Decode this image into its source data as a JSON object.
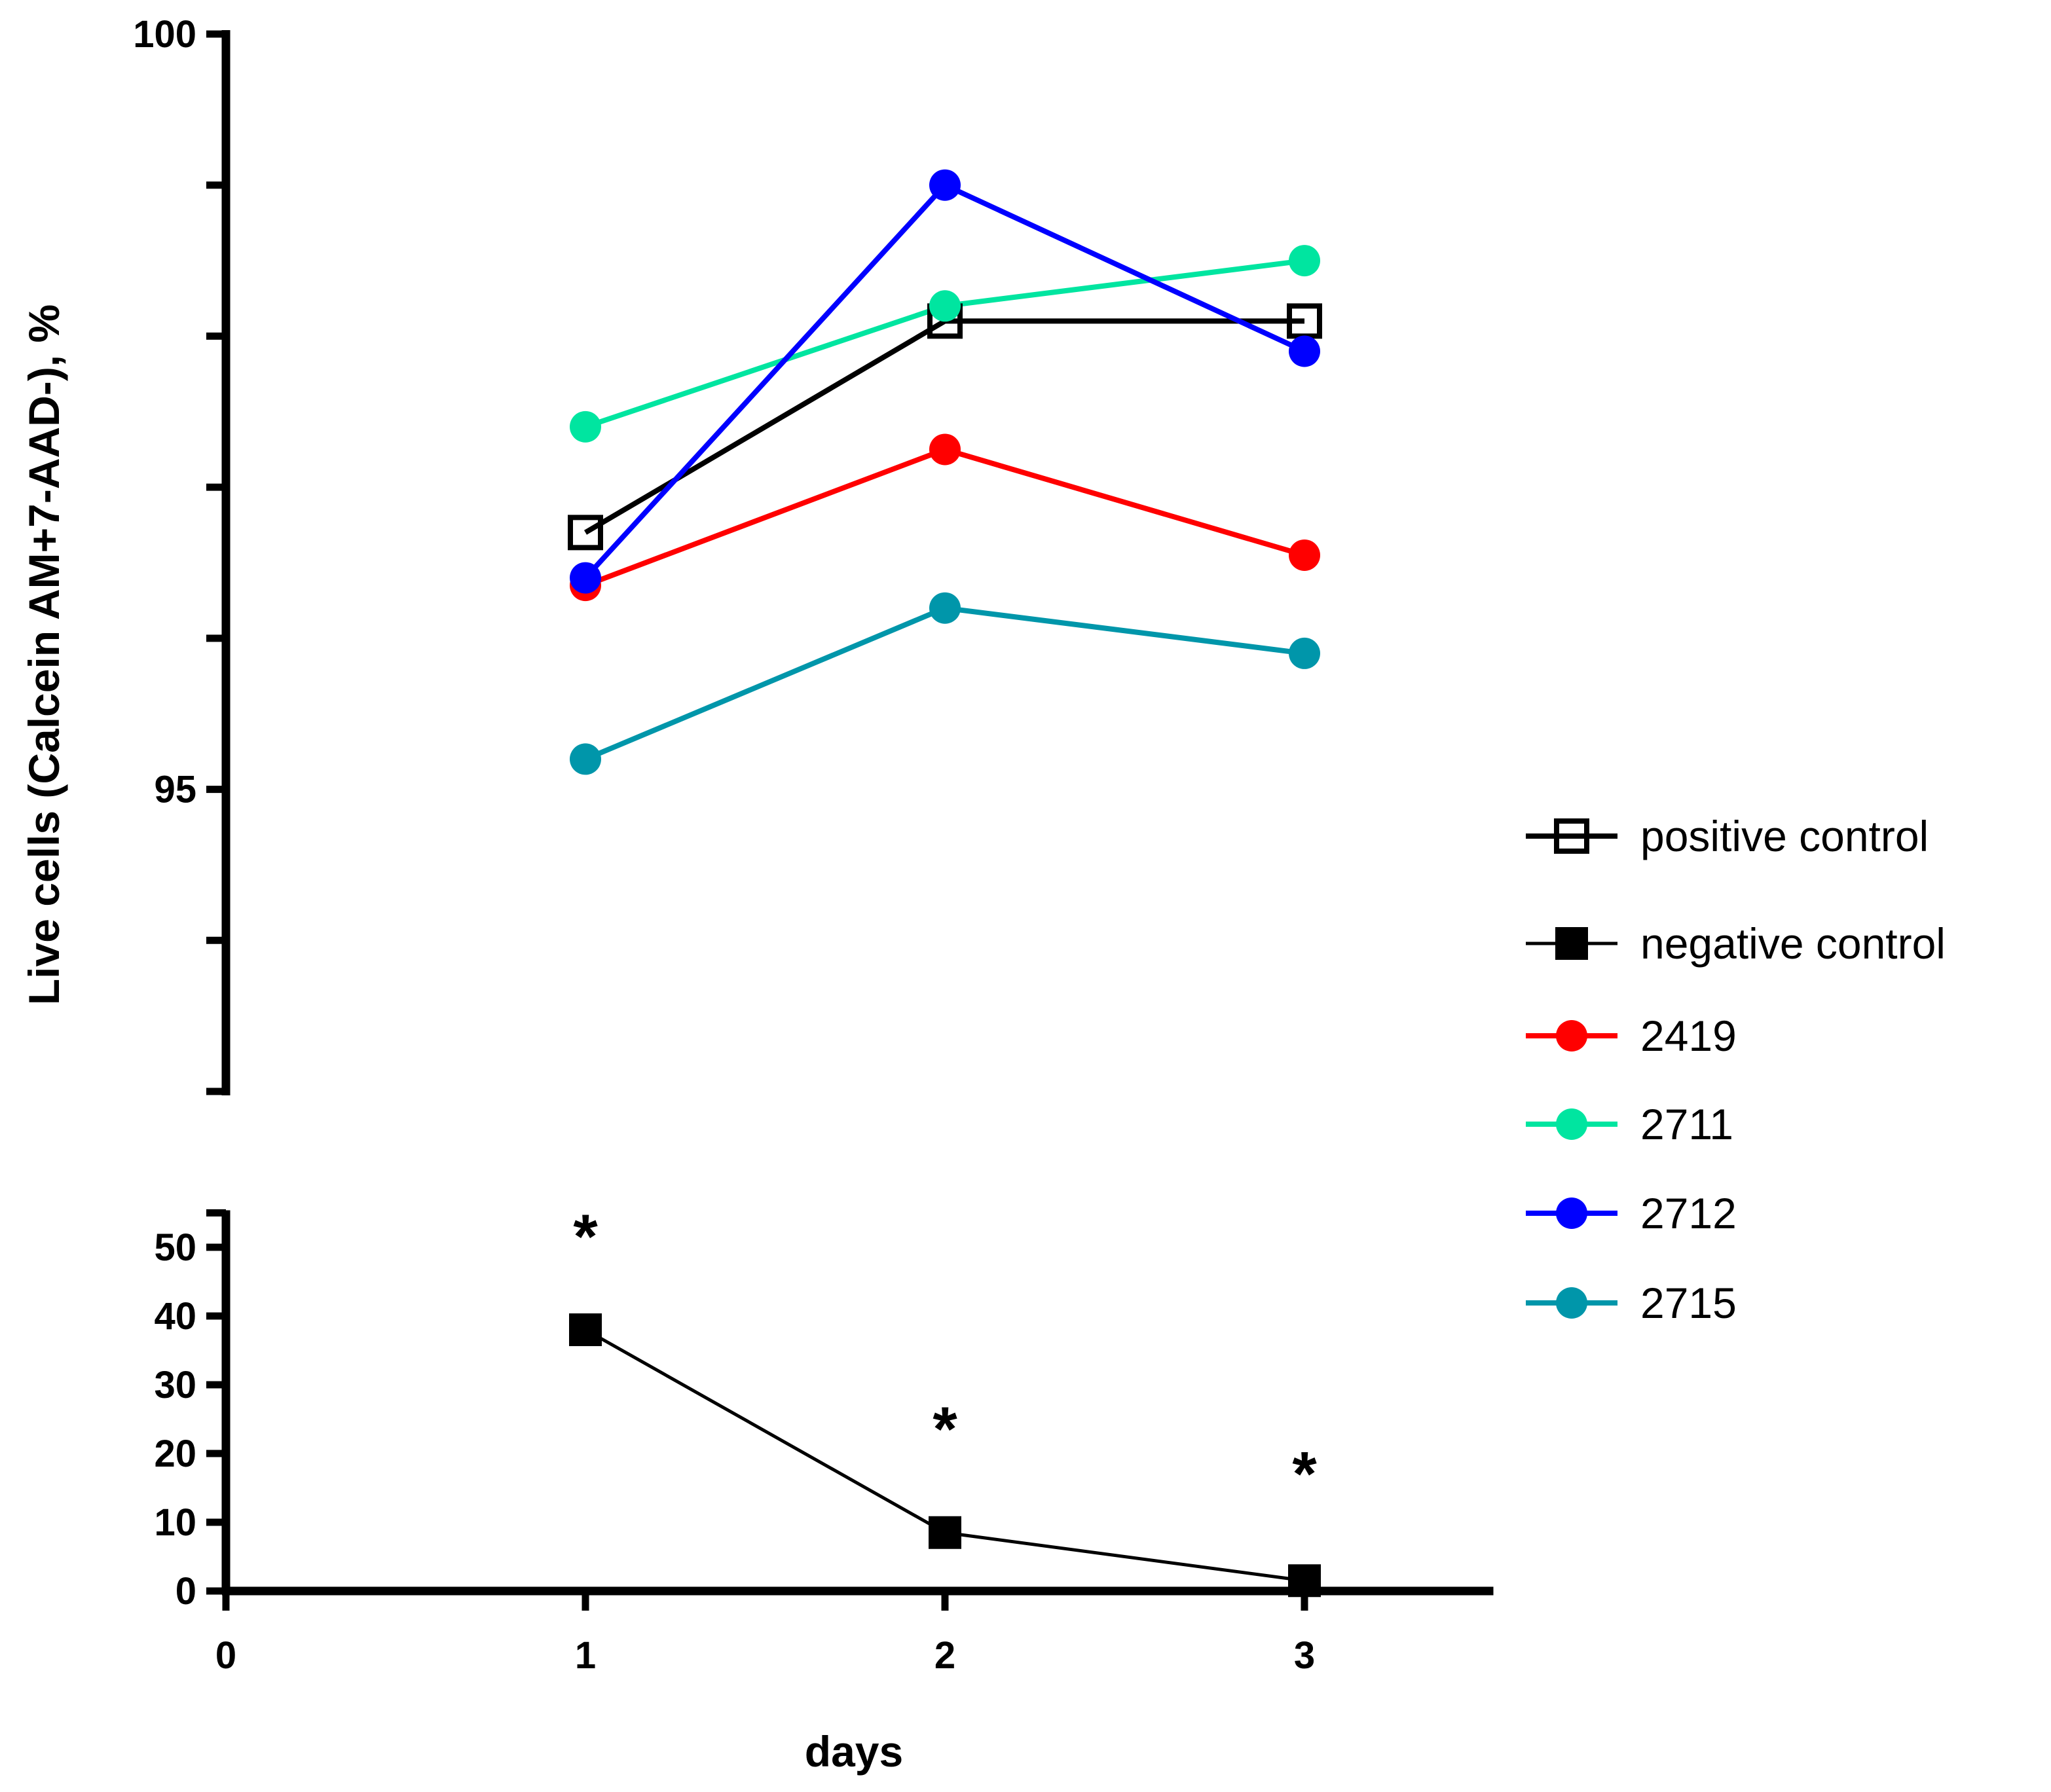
{
  "chart_data": {
    "type": "line",
    "ylabel": "Live cells (Calcein AM+7-AAD-), %",
    "xlabel": "days",
    "x_ticks": [
      "0",
      "1",
      "2",
      "3"
    ],
    "x_range": [
      0,
      3.5
    ],
    "panels": {
      "upper": {
        "ylim": [
          93,
          100
        ],
        "y_tick_values": [
          93,
          94,
          95,
          96,
          97,
          98,
          99,
          100
        ],
        "y_tick_labels": [
          "95",
          "100"
        ]
      },
      "lower": {
        "ylim": [
          0,
          55
        ],
        "y_tick_values": [
          0,
          10,
          20,
          30,
          40,
          50,
          55
        ],
        "y_tick_labels": [
          "0",
          "10",
          "20",
          "30",
          "40",
          "50"
        ]
      }
    },
    "series": [
      {
        "name": "positive control",
        "panel": "upper",
        "color": "#000000",
        "marker": "open-square",
        "x": [
          1,
          2,
          3
        ],
        "values": [
          96.7,
          98.1,
          98.1
        ]
      },
      {
        "name": "negative control",
        "panel": "lower",
        "color": "#000000",
        "marker": "filled-square",
        "x": [
          1,
          2,
          3
        ],
        "values": [
          38,
          8.5,
          1.5
        ]
      },
      {
        "name": "2419",
        "panel": "upper",
        "color": "#ff0000",
        "marker": "circle",
        "x": [
          1,
          2,
          3
        ],
        "values": [
          96.35,
          97.25,
          96.55
        ]
      },
      {
        "name": "2711",
        "panel": "upper",
        "color": "#00e5a0",
        "marker": "circle",
        "x": [
          1,
          2,
          3
        ],
        "values": [
          97.4,
          98.2,
          98.5
        ]
      },
      {
        "name": "2712",
        "panel": "upper",
        "color": "#0000ff",
        "marker": "circle",
        "x": [
          1,
          2,
          3
        ],
        "values": [
          96.4,
          99.0,
          97.9
        ]
      },
      {
        "name": "2715",
        "panel": "upper",
        "color": "#0096aa",
        "marker": "circle",
        "x": [
          1,
          2,
          3
        ],
        "values": [
          95.2,
          96.2,
          95.9
        ]
      }
    ],
    "annotations": [
      {
        "text": "*",
        "x": 1,
        "y": 53
      },
      {
        "text": "*",
        "x": 2,
        "y": 25
      },
      {
        "text": "*",
        "x": 3,
        "y": 18.5
      }
    ]
  }
}
